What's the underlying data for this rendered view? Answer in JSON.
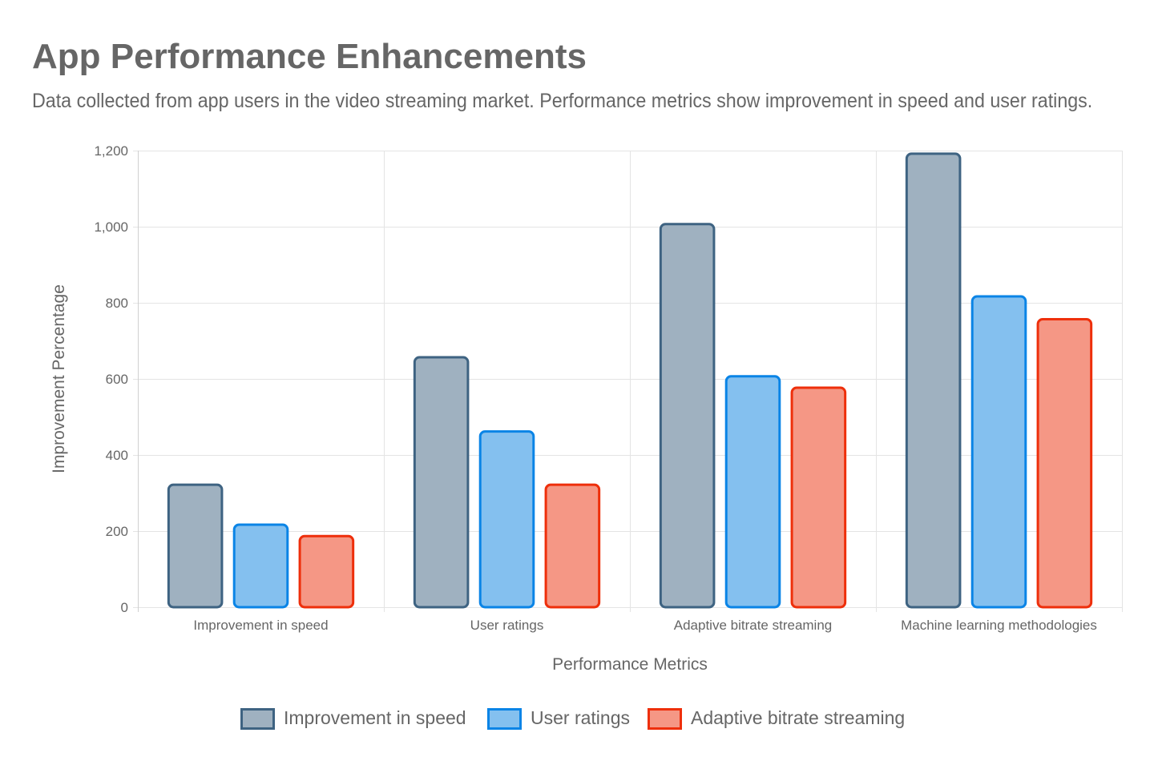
{
  "chart_data": {
    "type": "bar",
    "title": "App Performance Enhancements",
    "subtitle": "Data collected from app users in the video streaming market. Performance metrics show improvement in speed and user ratings.",
    "xlabel": "Performance Metrics",
    "ylabel": "Improvement Percentage",
    "ylim": [
      0,
      1200
    ],
    "yticks": [
      0,
      200,
      400,
      600,
      800,
      1000,
      1200
    ],
    "ytick_labels": [
      "0",
      "200",
      "400",
      "600",
      "800",
      "1,000",
      "1,200"
    ],
    "categories": [
      "Improvement in speed",
      "User ratings",
      "Adaptive bitrate streaming",
      "Machine learning methodologies"
    ],
    "series": [
      {
        "name": "Improvement in speed",
        "values": [
          325,
          660,
          1010,
          1195
        ],
        "fill": "#9fb1c0",
        "stroke": "#3e6382"
      },
      {
        "name": "User ratings",
        "values": [
          220,
          465,
          610,
          820
        ],
        "fill": "#84c0ef",
        "stroke": "#0a84e6"
      },
      {
        "name": "Adaptive bitrate streaming",
        "values": [
          190,
          325,
          580,
          760
        ],
        "fill": "#f59785",
        "stroke": "#ee2f0b"
      }
    ],
    "grid": true,
    "legend_position": "bottom"
  }
}
